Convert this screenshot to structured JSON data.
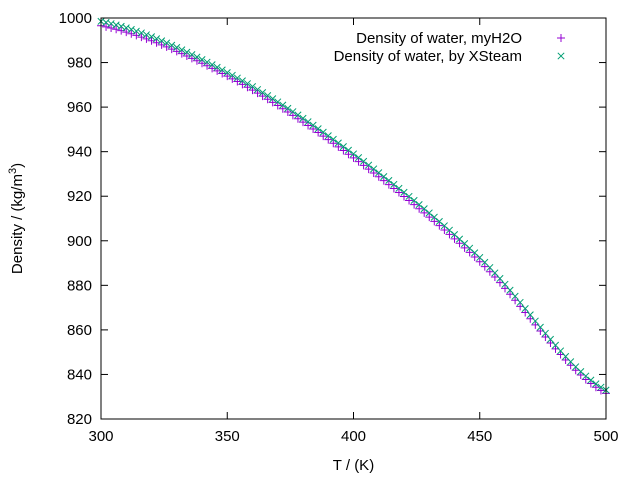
{
  "chart_data": {
    "type": "scatter",
    "xlabel": "T / (K)",
    "ylabel": "Density / (kg/m",
    "ylabel_superscript": "3",
    "ylabel_suffix": ")",
    "xlim": [
      300,
      500
    ],
    "ylim": [
      820,
      1000
    ],
    "xticks": [
      300,
      350,
      400,
      450,
      500
    ],
    "yticks": [
      820,
      840,
      860,
      880,
      900,
      920,
      940,
      960,
      980,
      1000
    ],
    "grid": false,
    "legend_position": "top-right",
    "temperature_range": [
      300,
      500
    ],
    "sample_step": 2,
    "series": [
      {
        "name": "Density of water, myH2O",
        "marker": "plus",
        "color": "#9400d3",
        "density_curve": {
          "reference_points": [
            {
              "T": 300,
              "rho": 996.5
            },
            {
              "T": 350,
              "rho": 973.9
            },
            {
              "T": 400,
              "rho": 937.2
            },
            {
              "T": 450,
              "rho": 890.6
            },
            {
              "T": 500,
              "rho": 831.5
            }
          ]
        }
      },
      {
        "name": "Density of water, by XSteam",
        "marker": "cross",
        "color": "#009e73",
        "density_curve": {
          "reference_points": [
            {
              "T": 300,
              "rho": 998.5
            },
            {
              "T": 350,
              "rho": 975.5
            },
            {
              "T": 400,
              "rho": 939.0
            },
            {
              "T": 450,
              "rho": 892.5
            },
            {
              "T": 500,
              "rho": 833.0
            }
          ]
        }
      }
    ]
  }
}
